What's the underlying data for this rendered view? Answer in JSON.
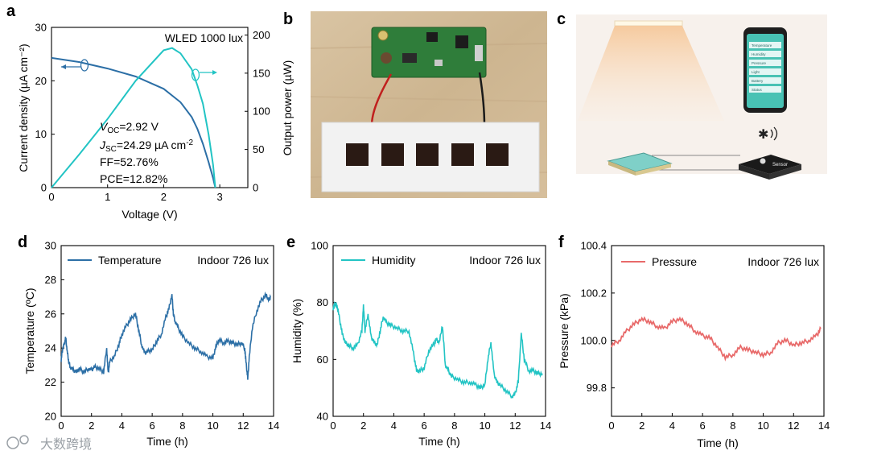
{
  "panels": {
    "a": "a",
    "b": "b",
    "c": "c",
    "d": "d",
    "e": "e",
    "f": "f"
  },
  "watermark": "大数跨境",
  "chart_data": [
    {
      "id": "a",
      "type": "line",
      "title": "WLED 1000 lux",
      "xlabel": "Voltage (V)",
      "ylabel": "Current density (µA cm⁻²)",
      "y2label": "Output power (µW)",
      "xlim": [
        0,
        3.5
      ],
      "ylim": [
        0,
        30
      ],
      "y2lim": [
        0,
        210
      ],
      "xticks": [
        "0",
        "1",
        "2",
        "3"
      ],
      "yticks": [
        "0",
        "10",
        "20",
        "30"
      ],
      "y2ticks": [
        "0",
        "50",
        "100",
        "150",
        "200"
      ],
      "color_jv": "#2c6fa6",
      "color_pv": "#22c4c4",
      "series": [
        {
          "name": "Current density",
          "axis": "left",
          "x": [
            0,
            0.5,
            1.0,
            1.5,
            2.0,
            2.3,
            2.5,
            2.6,
            2.7,
            2.8,
            2.88,
            2.92
          ],
          "y": [
            24.29,
            23.5,
            22.3,
            20.8,
            18.5,
            16.0,
            13.2,
            11.0,
            8.2,
            4.8,
            1.8,
            0
          ]
        },
        {
          "name": "Output power",
          "axis": "right",
          "x": [
            0,
            0.5,
            1.0,
            1.5,
            2.0,
            2.15,
            2.3,
            2.5,
            2.6,
            2.7,
            2.8,
            2.88,
            2.92
          ],
          "y": [
            0,
            44,
            90,
            140,
            180,
            183,
            176,
            155,
            134,
            110,
            70,
            30,
            0
          ]
        }
      ],
      "annotations": {
        "voc": "V",
        "voc_sub": "OC",
        "voc_val": "=2.92 V",
        "jsc": "J",
        "jsc_sub": "SC",
        "jsc_val": "=24.29 µA cm",
        "jsc_sup": "-2",
        "ff": "FF=52.76%",
        "pce": "PCE=12.82%"
      }
    },
    {
      "id": "d",
      "type": "line",
      "legend": "Temperature",
      "note": "Indoor 726 lux",
      "xlabel": "Time (h)",
      "ylabel": "Temperature (ºC)",
      "xlim": [
        0,
        14
      ],
      "ylim": [
        20,
        30
      ],
      "xticks": [
        "0",
        "2",
        "4",
        "6",
        "8",
        "10",
        "12",
        "14"
      ],
      "yticks": [
        "20",
        "22",
        "24",
        "26",
        "28",
        "30"
      ],
      "color": "#2c6fa6",
      "x": [
        0,
        0.1,
        0.2,
        0.3,
        0.4,
        0.5,
        0.6,
        0.8,
        1.0,
        1.2,
        1.5,
        1.8,
        2.0,
        2.2,
        2.5,
        2.8,
        3.0,
        3.1,
        3.2,
        3.5,
        3.8,
        4.0,
        4.3,
        4.6,
        4.9,
        5.1,
        5.3,
        5.5,
        5.7,
        6.0,
        6.3,
        6.6,
        6.9,
        7.1,
        7.3,
        7.4,
        7.5,
        7.7,
        8.0,
        8.4,
        8.8,
        9.2,
        9.6,
        10.0,
        10.2,
        10.4,
        10.7,
        11.0,
        11.3,
        11.6,
        11.9,
        12.1,
        12.2,
        12.3,
        12.4,
        12.6,
        12.9,
        13.2,
        13.5,
        13.7,
        13.8
      ],
      "y": [
        23.3,
        24.0,
        24.2,
        24.6,
        23.8,
        23.2,
        22.9,
        22.7,
        22.6,
        22.8,
        22.6,
        22.8,
        22.7,
        22.9,
        22.8,
        22.6,
        24.0,
        22.5,
        23.2,
        23.5,
        24.2,
        24.8,
        25.3,
        25.7,
        26.0,
        25.1,
        24.2,
        23.7,
        23.8,
        23.9,
        24.4,
        24.8,
        25.8,
        26.3,
        27.1,
        26.0,
        25.6,
        25.2,
        24.7,
        24.3,
        24.0,
        23.8,
        23.5,
        23.4,
        24.1,
        24.5,
        24.3,
        24.4,
        24.3,
        24.2,
        24.3,
        24.0,
        23.0,
        22.2,
        23.5,
        25.2,
        26.2,
        26.8,
        27.1,
        26.8,
        27.0
      ]
    },
    {
      "id": "e",
      "type": "line",
      "legend": "Humidity",
      "note": "Indoor 726 lux",
      "xlabel": "Time (h)",
      "ylabel": "Humidity (%)",
      "xlim": [
        0,
        14
      ],
      "ylim": [
        40,
        100
      ],
      "xticks": [
        "0",
        "2",
        "4",
        "6",
        "8",
        "10",
        "12",
        "14"
      ],
      "yticks": [
        "40",
        "60",
        "80",
        "100"
      ],
      "color": "#22c4c4",
      "x": [
        0,
        0.2,
        0.4,
        0.6,
        0.8,
        1.0,
        1.3,
        1.6,
        1.9,
        2.0,
        2.1,
        2.3,
        2.5,
        2.7,
        2.9,
        3.1,
        3.3,
        3.5,
        3.8,
        4.2,
        4.6,
        5.0,
        5.3,
        5.5,
        5.7,
        6.0,
        6.3,
        6.6,
        6.8,
        7.0,
        7.2,
        7.4,
        7.6,
        7.8,
        8.2,
        8.6,
        9.0,
        9.4,
        9.7,
        10.0,
        10.2,
        10.4,
        10.6,
        10.8,
        11.0,
        11.4,
        11.8,
        12.0,
        12.2,
        12.4,
        12.6,
        12.9,
        13.2,
        13.5,
        13.8
      ],
      "y": [
        78,
        80,
        75,
        69,
        66,
        65,
        64,
        65,
        70,
        79,
        70,
        76,
        68,
        66,
        65,
        70,
        75,
        73,
        72,
        71,
        70,
        70,
        62,
        56,
        56,
        57,
        63,
        65,
        67,
        66,
        72,
        58,
        56,
        54,
        53,
        52,
        52,
        51,
        50,
        51,
        60,
        66,
        55,
        52,
        51,
        49,
        47,
        48,
        52,
        69,
        60,
        56,
        56,
        55,
        55
      ]
    },
    {
      "id": "f",
      "type": "line",
      "legend": "Pressure",
      "note": "Indoor 726 lux",
      "xlabel": "Time (h)",
      "ylabel": "Pressure (kPa)",
      "xlim": [
        0,
        14
      ],
      "ylim": [
        99.68,
        100.4
      ],
      "xticks": [
        "0",
        "2",
        "4",
        "6",
        "8",
        "10",
        "12",
        "14"
      ],
      "yticks": [
        "99.8",
        "100.0",
        "100.2",
        "100.4"
      ],
      "color": "#e86a6a",
      "x": [
        0,
        0.5,
        1.0,
        1.5,
        2.0,
        2.5,
        3.0,
        3.5,
        4.0,
        4.5,
        5.0,
        5.5,
        6.0,
        6.5,
        7.0,
        7.5,
        8.0,
        8.5,
        9.0,
        9.5,
        10.0,
        10.5,
        11.0,
        11.5,
        12.0,
        12.5,
        13.0,
        13.5,
        13.8
      ],
      "y": [
        99.98,
        100.0,
        100.04,
        100.07,
        100.09,
        100.08,
        100.06,
        100.05,
        100.08,
        100.09,
        100.07,
        100.04,
        100.02,
        100.01,
        99.97,
        99.93,
        99.94,
        99.97,
        99.96,
        99.95,
        99.94,
        99.95,
        99.99,
        100.0,
        99.98,
        99.99,
        100.0,
        100.02,
        100.05
      ]
    }
  ],
  "photo_b": {
    "description_label": "Photograph of sensor circuit board connected to a strip of five solar cells"
  },
  "schematic_c": {
    "phone_rows": [
      "Temperature",
      "Humidity",
      "Pressure",
      "Light",
      "Battery",
      "Status"
    ],
    "node_label": "Sensor"
  }
}
